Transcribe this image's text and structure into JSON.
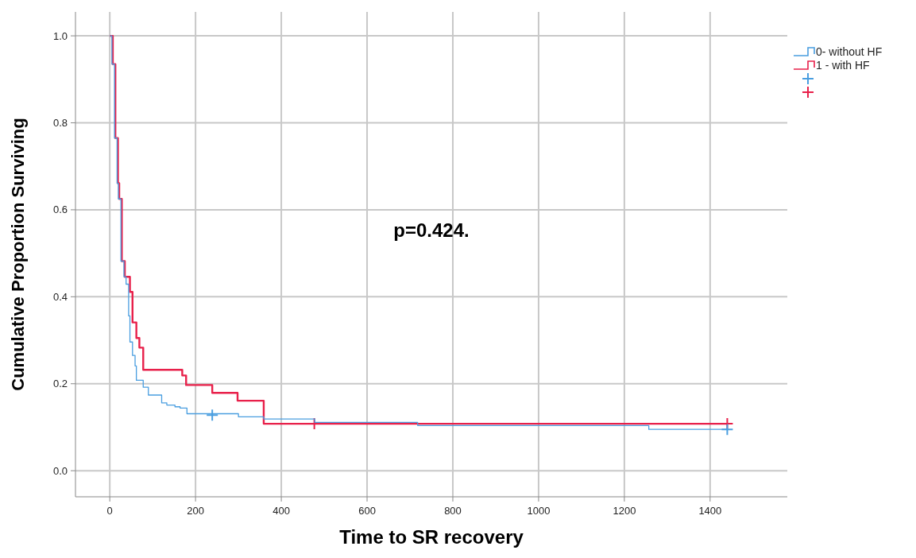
{
  "chart_data": {
    "type": "step",
    "xlabel": "Time to SR recovery",
    "ylabel": "Cumulative Proportion Surviving",
    "xlim": [
      -80,
      1580
    ],
    "xticks": [
      0,
      200,
      400,
      600,
      800,
      1000,
      1200,
      1400
    ],
    "ylim": [
      -0.06,
      1.055
    ],
    "yticks": [
      {
        "value": 0,
        "label": "0.0"
      },
      {
        "value": 0.2,
        "label": "0.2"
      },
      {
        "value": 0.4,
        "label": "0.4"
      },
      {
        "value": 0.6,
        "label": "0.6"
      },
      {
        "value": 0.8,
        "label": "0.8"
      },
      {
        "value": 1,
        "label": "1.0"
      }
    ],
    "grid": true,
    "legend": "top right",
    "line_style": "solid",
    "annotations": [
      "p=0.424."
    ],
    "series": [
      {
        "name": "0- without HF",
        "color": "#4a9ee0",
        "type": "step",
        "x": [
          0,
          5,
          11,
          17,
          20,
          26,
          33,
          38,
          44,
          47,
          53,
          59,
          62,
          78,
          90,
          121,
          133,
          152,
          164,
          180,
          300,
          359,
          478,
          718,
          1257,
          1440
        ],
        "values": [
          1.0,
          0.935,
          0.765,
          0.661,
          0.625,
          0.482,
          0.446,
          0.429,
          0.356,
          0.296,
          0.265,
          0.241,
          0.208,
          0.192,
          0.174,
          0.156,
          0.151,
          0.147,
          0.144,
          0.131,
          0.124,
          0.119,
          0.111,
          0.104,
          0.095,
          0.095
        ]
      },
      {
        "name": "1 - with HF",
        "color": "#e8204a",
        "type": "step",
        "x": [
          0,
          7,
          13,
          19,
          22,
          28,
          35,
          47,
          53,
          62,
          69,
          78,
          169,
          178,
          239,
          298,
          359,
          1440
        ],
        "values": [
          1.0,
          0.935,
          0.765,
          0.661,
          0.625,
          0.482,
          0.446,
          0.411,
          0.341,
          0.305,
          0.283,
          0.232,
          0.219,
          0.197,
          0.179,
          0.161,
          0.108,
          0.108
        ]
      },
      {
        "color": "#4a9ee0",
        "type": "scatter",
        "marker": "cross",
        "x": [
          239,
          1440
        ],
        "values": [
          0.128,
          0.095
        ]
      },
      {
        "color": "#e8204a",
        "type": "scatter",
        "marker": "cross",
        "x": [
          477,
          1440
        ],
        "values": [
          0.108,
          0.108
        ]
      }
    ]
  }
}
